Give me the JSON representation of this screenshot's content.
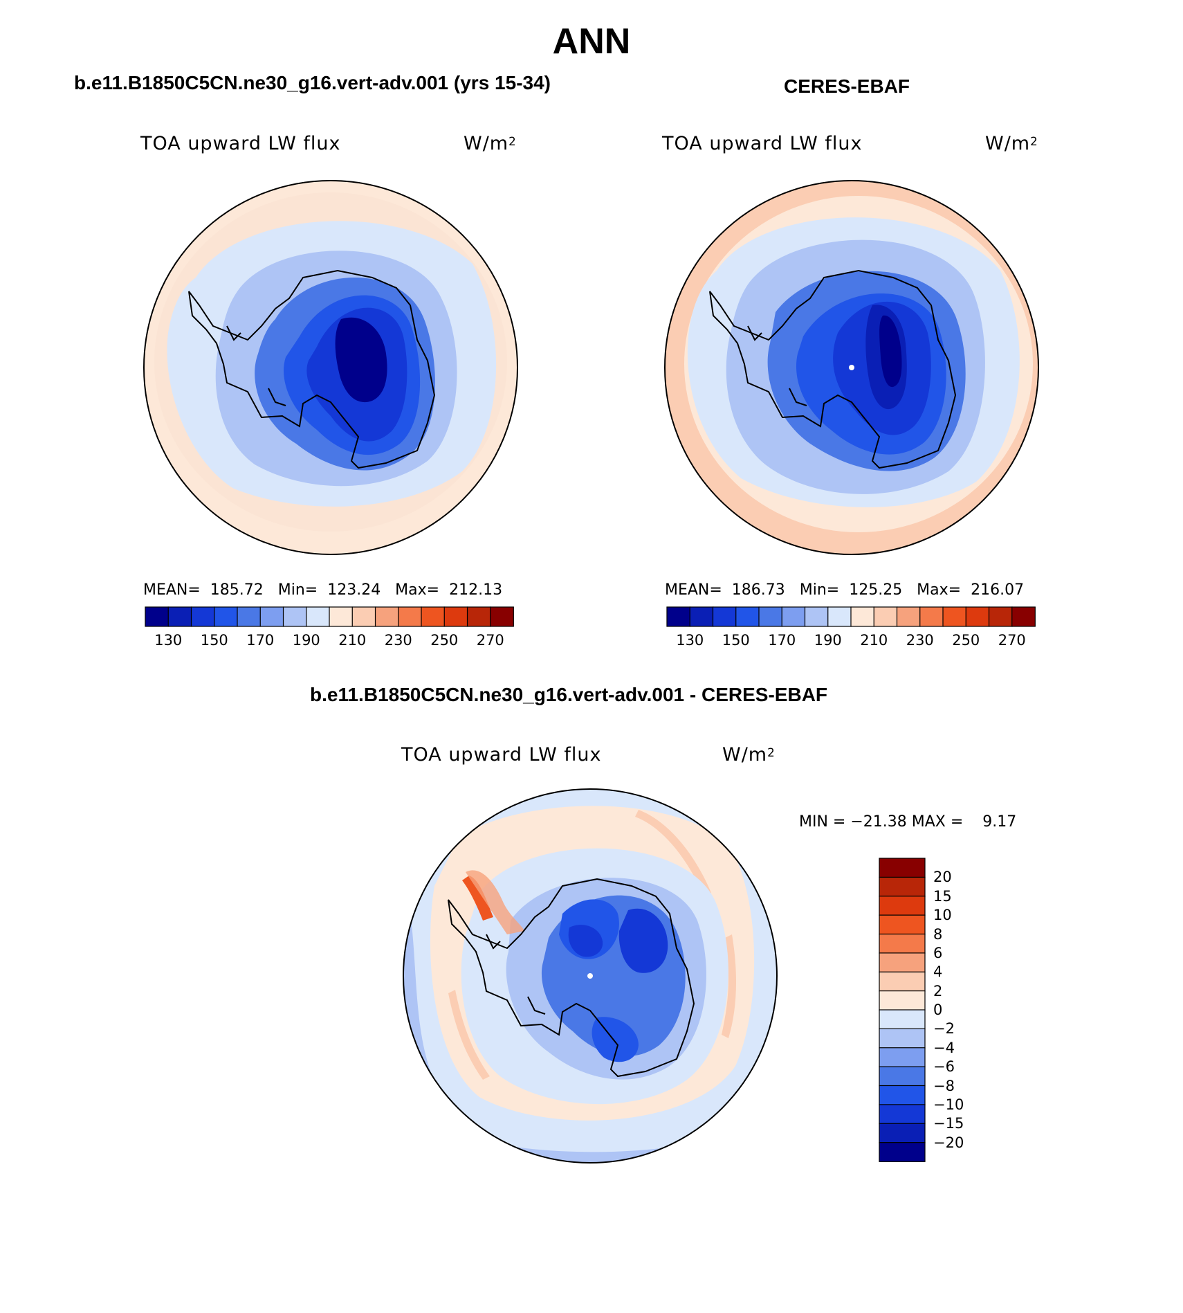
{
  "figure": {
    "season": "ANN"
  },
  "panels": [
    {
      "title": "b.e11.B1850C5CN.ne30_g16.vert-adv.001 (yrs 15-34)",
      "variable": "TOA upward LW flux",
      "units_base": "W/m",
      "units_exp": "2",
      "stats": "MEAN=  185.72   Min=  123.24   Max=  212.13",
      "colorbar_ticks": [
        "130",
        "150",
        "170",
        "190",
        "210",
        "230",
        "250",
        "270"
      ]
    },
    {
      "title": "CERES-EBAF",
      "variable": "TOA upward LW flux",
      "units_base": "W/m",
      "units_exp": "2",
      "stats": "MEAN=  186.73   Min=  125.25   Max=  216.07",
      "colorbar_ticks": [
        "130",
        "150",
        "170",
        "190",
        "210",
        "230",
        "250",
        "270"
      ]
    },
    {
      "title": "b.e11.B1850C5CN.ne30_g16.vert-adv.001 - CERES-EBAF",
      "variable": "TOA upward LW flux",
      "units_base": "W/m",
      "units_exp": "2",
      "stats": "MIN = −21.38 MAX =    9.17",
      "colorbar_ticks": [
        "20",
        "15",
        "10",
        "8",
        "6",
        "4",
        "2",
        "0",
        "−2",
        "−4",
        "−6",
        "−8",
        "−10",
        "−15",
        "−20"
      ]
    }
  ],
  "colormaps": {
    "absolute": [
      "#00008b",
      "#0a1fb5",
      "#1438d6",
      "#2155e8",
      "#4a78e6",
      "#7d9ef0",
      "#aec4f5",
      "#d9e7fb",
      "#fde8d8",
      "#fbcdb3",
      "#f6a27d",
      "#f47a4a",
      "#ee5520",
      "#dd3a0e",
      "#b82608",
      "#880000"
    ],
    "difference": [
      "#880000",
      "#b82608",
      "#dd3a0e",
      "#ee5520",
      "#f47a4a",
      "#f6a27d",
      "#fbcdb3",
      "#fde8d8",
      "#d9e7fb",
      "#aec4f5",
      "#7d9ef0",
      "#4a78e6",
      "#2155e8",
      "#1438d6",
      "#0a1fb5",
      "#00008b"
    ]
  }
}
